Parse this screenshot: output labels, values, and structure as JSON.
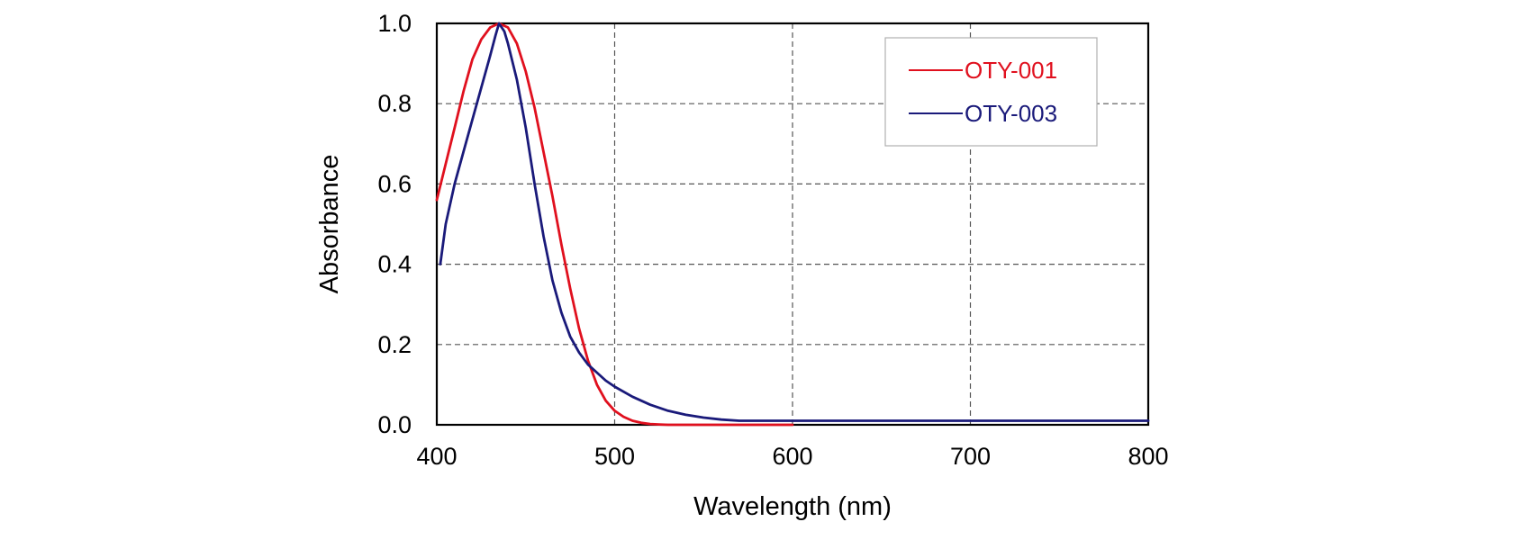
{
  "chart_data": {
    "type": "line",
    "title": "",
    "xlabel": "Wavelength (nm)",
    "ylabel": "Absorbance",
    "xlim": [
      400,
      800
    ],
    "ylim": [
      0.0,
      1.0
    ],
    "x_ticks": [
      400,
      500,
      600,
      700,
      800
    ],
    "x_tick_labels": [
      "400",
      "500",
      "600",
      "700",
      "800"
    ],
    "y_ticks": [
      0.0,
      0.2,
      0.4,
      0.6,
      0.8,
      1.0
    ],
    "y_tick_labels": [
      "0.0",
      "0.2",
      "0.4",
      "0.6",
      "0.8",
      "1.0"
    ],
    "grid": true,
    "legend_position": "top-right",
    "series": [
      {
        "name": "OTY-001",
        "color": "#e0101e",
        "x": [
          400,
          405,
          410,
          415,
          420,
          425,
          430,
          435,
          440,
          445,
          450,
          455,
          460,
          465,
          470,
          475,
          480,
          485,
          490,
          495,
          500,
          505,
          510,
          515,
          520,
          525,
          530,
          540,
          550,
          560,
          570,
          580,
          590,
          600
        ],
        "y": [
          0.56,
          0.65,
          0.74,
          0.83,
          0.91,
          0.96,
          0.99,
          1.0,
          0.99,
          0.95,
          0.88,
          0.79,
          0.68,
          0.57,
          0.45,
          0.34,
          0.24,
          0.16,
          0.1,
          0.06,
          0.035,
          0.02,
          0.01,
          0.005,
          0.002,
          0.001,
          0.0,
          0.0,
          0.0,
          0.0,
          0.0,
          0.0,
          0.0,
          0.0
        ]
      },
      {
        "name": "OTY-003",
        "color": "#1a1a7a",
        "x": [
          402,
          405,
          410,
          415,
          420,
          425,
          430,
          433,
          435,
          438,
          440,
          445,
          450,
          455,
          460,
          465,
          470,
          475,
          480,
          485,
          490,
          495,
          500,
          510,
          520,
          530,
          540,
          550,
          560,
          570,
          580,
          600,
          650,
          700,
          750,
          800
        ],
        "y": [
          0.4,
          0.5,
          0.6,
          0.68,
          0.76,
          0.84,
          0.92,
          0.97,
          1.0,
          0.98,
          0.95,
          0.86,
          0.74,
          0.6,
          0.47,
          0.36,
          0.28,
          0.22,
          0.18,
          0.15,
          0.13,
          0.11,
          0.095,
          0.07,
          0.05,
          0.035,
          0.025,
          0.018,
          0.013,
          0.01,
          0.01,
          0.01,
          0.01,
          0.01,
          0.01,
          0.01
        ]
      }
    ]
  }
}
